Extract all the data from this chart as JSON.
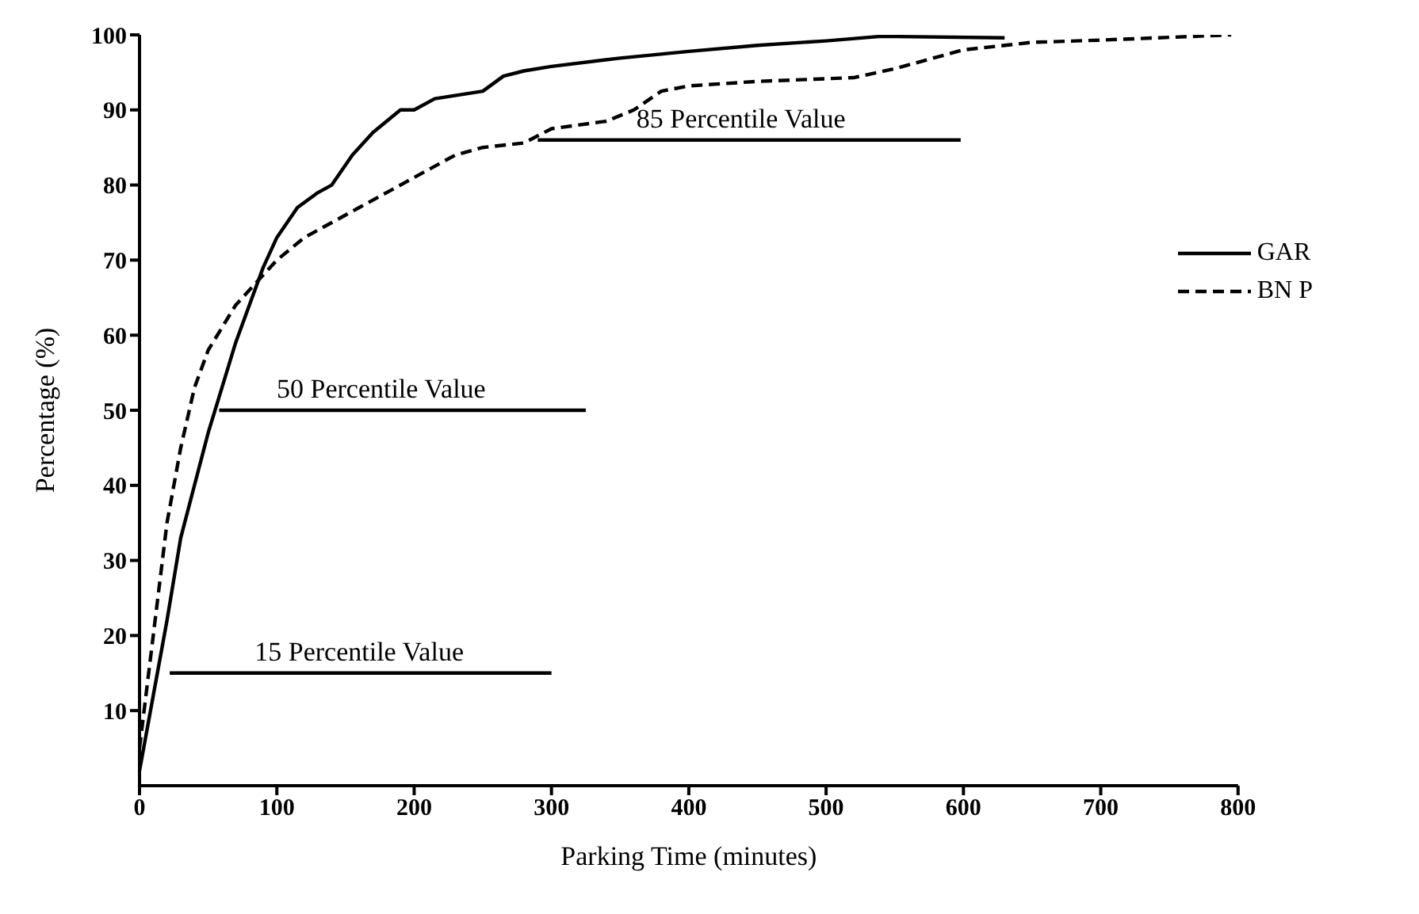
{
  "chart_data": {
    "type": "line",
    "xlabel": "Parking Time  (minutes)",
    "ylabel": "Percentage  (%)",
    "xlim": [
      0,
      800
    ],
    "xticks": [
      0,
      100,
      200,
      300,
      400,
      500,
      600,
      700,
      800
    ],
    "ylim": [
      0,
      100
    ],
    "yticks": [
      10,
      20,
      30,
      40,
      50,
      60,
      70,
      80,
      90,
      100
    ],
    "legend": "right",
    "marker": "none",
    "series": [
      {
        "name": "GAR",
        "color": "#000000",
        "line_style": "solid",
        "x": [
          0,
          10,
          20,
          30,
          40,
          50,
          60,
          70,
          80,
          90,
          100,
          115,
          130,
          140,
          155,
          170,
          190,
          200,
          215,
          250,
          265,
          280,
          300,
          350,
          400,
          450,
          500,
          540,
          630
        ],
        "values": [
          2,
          12,
          22,
          33,
          40,
          47,
          53,
          59,
          64,
          69,
          73,
          77,
          79,
          80,
          84,
          87,
          90,
          90,
          91.5,
          92.5,
          94.5,
          95.2,
          95.8,
          96.9,
          97.8,
          98.6,
          99.2,
          99.8,
          99.6
        ]
      },
      {
        "name": "BN P",
        "color": "#000000",
        "line_style": "dashed",
        "x": [
          0,
          10,
          20,
          30,
          40,
          50,
          60,
          70,
          80,
          90,
          100,
          120,
          140,
          160,
          180,
          200,
          230,
          250,
          280,
          300,
          340,
          360,
          380,
          400,
          450,
          520,
          550,
          600,
          650,
          700,
          795
        ],
        "values": [
          5,
          20,
          35,
          45,
          53,
          58,
          61,
          64,
          66,
          68,
          70,
          73,
          75,
          77,
          79,
          81,
          84,
          85,
          85.6,
          87.5,
          88.5,
          90,
          92.5,
          93.2,
          93.8,
          94.3,
          95.5,
          98,
          99,
          99.3,
          100
        ]
      },
      {
        "type": "line",
        "color": "#000000",
        "line_style": "solid",
        "x": [
          22,
          300
        ],
        "values": [
          15,
          15
        ]
      },
      {
        "type": "line",
        "color": "#000000",
        "line_style": "solid",
        "x": [
          58,
          325
        ],
        "values": [
          50,
          50
        ]
      },
      {
        "type": "line",
        "color": "#000000",
        "line_style": "solid",
        "x": [
          290,
          598
        ],
        "values": [
          86,
          86
        ]
      }
    ],
    "annotations": [
      {
        "text": "15 Percentile Value",
        "x": 160,
        "y": 15
      },
      {
        "text": "50 Percentile Value",
        "x": 176,
        "y": 50
      },
      {
        "text": "85 Percentile Value",
        "x": 438,
        "y": 86
      }
    ]
  }
}
